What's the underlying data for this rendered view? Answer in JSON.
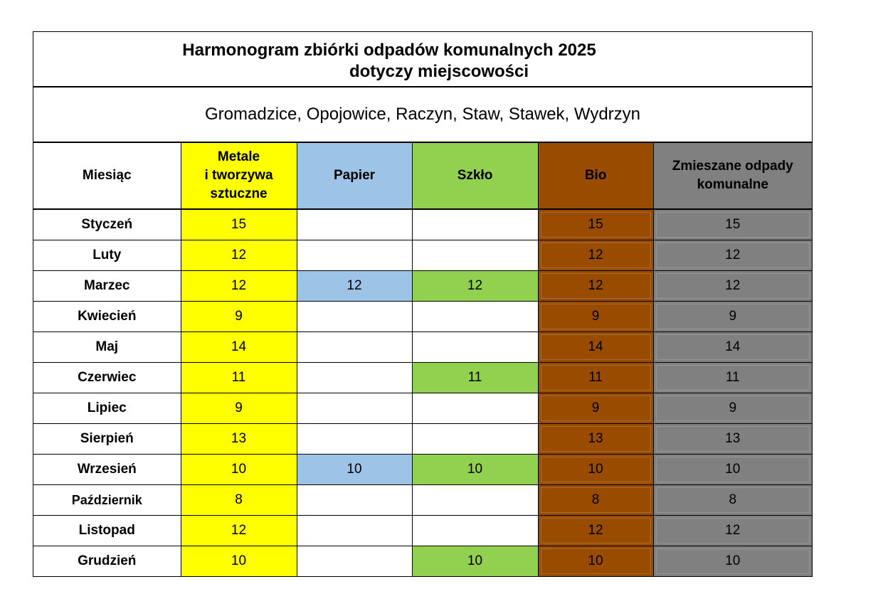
{
  "title": {
    "line1": "Harmonogram zbiórki odpadów komunalnych 2025",
    "line2": "dotyczy miejscowości"
  },
  "places": "Gromadzice, Opojowice, Raczyn, Staw, Stawek, Wydrzyn",
  "headers": {
    "month": "Miesiąc",
    "metal_line1": "Metale",
    "metal_line2": "i tworzywa",
    "metal_line3": "sztuczne",
    "paper": "Papier",
    "glass": "Szkło",
    "bio": "Bio",
    "mixed_line1": "Zmieszane odpady",
    "mixed_line2": "komunalne"
  },
  "colors": {
    "metal": "#ffff00",
    "paper": "#9dc3e6",
    "glass": "#92d050",
    "bio": "#994c00",
    "mixed": "#808080"
  },
  "rows": [
    {
      "month": "Styczeń",
      "metal": "15",
      "paper": "",
      "glass": "",
      "bio": "15",
      "mixed": "15"
    },
    {
      "month": "Luty",
      "metal": "12",
      "paper": "",
      "glass": "",
      "bio": "12",
      "mixed": "12"
    },
    {
      "month": "Marzec",
      "metal": "12",
      "paper": "12",
      "glass": "12",
      "bio": "12",
      "mixed": "12"
    },
    {
      "month": "Kwiecień",
      "metal": "9",
      "paper": "",
      "glass": "",
      "bio": "9",
      "mixed": "9"
    },
    {
      "month": "Maj",
      "metal": "14",
      "paper": "",
      "glass": "",
      "bio": "14",
      "mixed": "14"
    },
    {
      "month": "Czerwiec",
      "metal": "11",
      "paper": "",
      "glass": "11",
      "bio": "11",
      "mixed": "11"
    },
    {
      "month": "Lipiec",
      "metal": "9",
      "paper": "",
      "glass": "",
      "bio": "9",
      "mixed": "9"
    },
    {
      "month": "Sierpień",
      "metal": "13",
      "paper": "",
      "glass": "",
      "bio": "13",
      "mixed": "13"
    },
    {
      "month": "Wrzesień",
      "metal": "10",
      "paper": "10",
      "glass": "10",
      "bio": "10",
      "mixed": "10"
    },
    {
      "month": "Październik",
      "metal": "8",
      "paper": "",
      "glass": "",
      "bio": "8",
      "mixed": "8"
    },
    {
      "month": "Listopad",
      "metal": "12",
      "paper": "",
      "glass": "",
      "bio": "12",
      "mixed": "12"
    },
    {
      "month": "Grudzień",
      "metal": "10",
      "paper": "",
      "glass": "10",
      "bio": "10",
      "mixed": "10"
    }
  ]
}
